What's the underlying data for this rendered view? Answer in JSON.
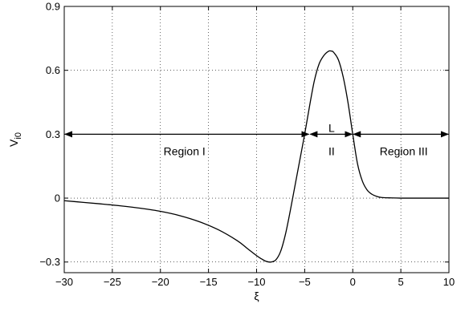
{
  "chart_data": {
    "type": "line",
    "title": "",
    "xlabel": "ξ",
    "ylabel": "V",
    "ylabel_subscript": "i0",
    "xlim": [
      -30,
      10
    ],
    "ylim": [
      -0.35,
      0.9
    ],
    "xticks": [
      -30,
      -25,
      -20,
      -15,
      -10,
      -5,
      0,
      5,
      10
    ],
    "xtick_labels": [
      "−30",
      "−25",
      "−20",
      "−15",
      "−10",
      "−5",
      "0",
      "5",
      "10"
    ],
    "yticks": [
      -0.3,
      0,
      0.3,
      0.6,
      0.9
    ],
    "ytick_labels": [
      "−0.3",
      "0",
      "0.3",
      "0.6",
      "0.9"
    ],
    "grid": true,
    "series": [
      {
        "x": [
          -30,
          -28,
          -26,
          -24,
          -22,
          -20,
          -18,
          -16,
          -14,
          -12,
          -11,
          -10,
          -9.5,
          -9,
          -8.5,
          -8,
          -7.5,
          -7,
          -6.5,
          -6,
          -5.5,
          -5,
          -4.5,
          -4,
          -3.5,
          -3,
          -2.5,
          -2.2,
          -2,
          -1.5,
          -1,
          -0.5,
          0,
          0.5,
          1,
          1.5,
          2,
          2.5,
          3,
          4,
          5,
          6,
          8,
          10
        ],
        "y": [
          -0.012,
          -0.02,
          -0.028,
          -0.037,
          -0.048,
          -0.062,
          -0.082,
          -0.11,
          -0.148,
          -0.2,
          -0.235,
          -0.27,
          -0.285,
          -0.297,
          -0.3,
          -0.29,
          -0.25,
          -0.17,
          -0.06,
          0.06,
          0.18,
          0.3,
          0.43,
          0.55,
          0.63,
          0.67,
          0.69,
          0.69,
          0.685,
          0.65,
          0.57,
          0.45,
          0.3,
          0.16,
          0.08,
          0.038,
          0.018,
          0.008,
          0.003,
          0.001,
          0,
          0,
          0,
          0
        ],
        "color": "#000000"
      }
    ],
    "annotations": [
      {
        "text": "Region I",
        "x": -17.5,
        "y": 0.22
      },
      {
        "text": "L",
        "x": -2.2,
        "y": 0.33
      },
      {
        "text": "II",
        "x": -2.2,
        "y": 0.22
      },
      {
        "text": "Region III",
        "x": 5.3,
        "y": 0.22
      }
    ],
    "arrows": [
      {
        "from": -30,
        "to": -4.5,
        "y": 0.3
      },
      {
        "from": -4.5,
        "to": 0,
        "y": 0.3
      },
      {
        "from": 0,
        "to": 10,
        "y": 0.3
      }
    ]
  }
}
